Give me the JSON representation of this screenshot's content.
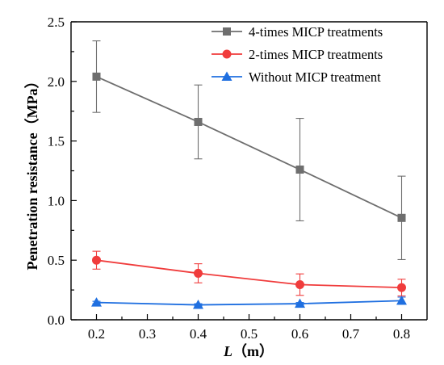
{
  "chart_data": {
    "type": "line",
    "xlabel": "L（m）",
    "xlabel_var": "L",
    "xlabel_unit": "（m）",
    "ylabel": "Penetration resistance（MPa）",
    "xlim": [
      0.15,
      0.85
    ],
    "ylim": [
      0,
      2.5
    ],
    "x_ticks": [
      "0.2",
      "0.3",
      "0.4",
      "0.5",
      "0.6",
      "0.7",
      "0.8"
    ],
    "y_ticks": [
      "0.0",
      "0.5",
      "1.0",
      "1.5",
      "2.0",
      "2.5"
    ],
    "x": [
      0.2,
      0.4,
      0.6,
      0.8
    ],
    "legend_position": "top-right",
    "grid": false,
    "series": [
      {
        "name": "4-times MICP treatments",
        "color": "#6e6e6e",
        "marker": "square",
        "values": [
          2.04,
          1.66,
          1.26,
          0.855
        ],
        "error": [
          0.3,
          0.31,
          0.43,
          0.35
        ]
      },
      {
        "name": "2-times MICP treatments",
        "color": "#f03c3c",
        "marker": "circle",
        "values": [
          0.5,
          0.39,
          0.295,
          0.27
        ],
        "error": [
          0.075,
          0.08,
          0.09,
          0.07
        ]
      },
      {
        "name": "Without MICP treatment",
        "color": "#1f6fe0",
        "marker": "triangle",
        "values": [
          0.145,
          0.125,
          0.135,
          0.16
        ],
        "error": [
          0.01,
          0.01,
          0.01,
          0.03
        ]
      }
    ]
  }
}
